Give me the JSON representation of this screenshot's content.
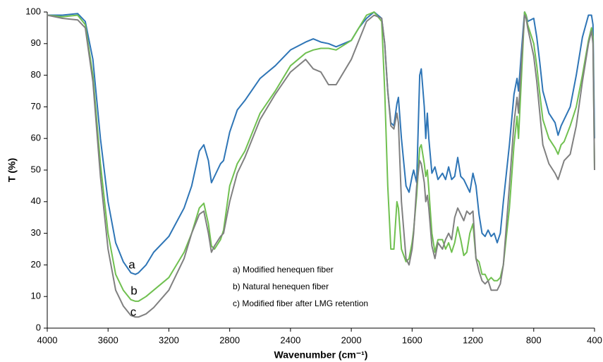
{
  "chart_data": {
    "type": "line",
    "xlabel": "Wavenumber (cm⁻¹)",
    "ylabel": "T (%)",
    "xlim": [
      4000,
      400
    ],
    "xticks": [
      4000,
      3600,
      3200,
      2800,
      2400,
      2000,
      1600,
      1200,
      800,
      400
    ],
    "ylim": [
      0,
      100
    ],
    "yticks": [
      0,
      10,
      20,
      30,
      40,
      50,
      60,
      70,
      80,
      90,
      100
    ],
    "grid": false,
    "x": [
      4000,
      3900,
      3800,
      3750,
      3700,
      3650,
      3600,
      3550,
      3500,
      3450,
      3420,
      3400,
      3350,
      3300,
      3200,
      3100,
      3050,
      3000,
      2970,
      2940,
      2920,
      2900,
      2860,
      2840,
      2800,
      2750,
      2700,
      2600,
      2500,
      2400,
      2300,
      2250,
      2200,
      2150,
      2100,
      2000,
      1950,
      1900,
      1850,
      1800,
      1780,
      1760,
      1740,
      1720,
      1700,
      1690,
      1670,
      1640,
      1620,
      1600,
      1590,
      1570,
      1550,
      1540,
      1520,
      1510,
      1500,
      1490,
      1470,
      1450,
      1430,
      1400,
      1380,
      1360,
      1340,
      1320,
      1300,
      1280,
      1260,
      1240,
      1220,
      1200,
      1180,
      1160,
      1140,
      1120,
      1100,
      1080,
      1060,
      1040,
      1020,
      1000,
      960,
      930,
      910,
      900,
      880,
      860,
      850,
      840,
      800,
      780,
      760,
      740,
      700,
      660,
      640,
      620,
      600,
      560,
      520,
      480,
      440,
      420,
      410,
      400
    ],
    "series": [
      {
        "name": "a) Modified henequen fiber",
        "label": "a",
        "color": "#2e75b6",
        "values": [
          99,
          99,
          99.5,
          97,
          85,
          60,
          40,
          27,
          21,
          17.5,
          17,
          17.5,
          20,
          24,
          29,
          38,
          45,
          56,
          58,
          53,
          46,
          48,
          52,
          53,
          62,
          69,
          72,
          79,
          83,
          88,
          90.5,
          91.5,
          90.5,
          90,
          89,
          91,
          95,
          98,
          100,
          98,
          90,
          75,
          65,
          64,
          71,
          73,
          60,
          45,
          43,
          48,
          50,
          46,
          80,
          82,
          70,
          60,
          68,
          60,
          49,
          51,
          47,
          49,
          47,
          51,
          47,
          48,
          54,
          48,
          47,
          45,
          43,
          49,
          45,
          36,
          30,
          29,
          31,
          29,
          30,
          27,
          30,
          40,
          58,
          74,
          79,
          75,
          88,
          100,
          99,
          97,
          98,
          92,
          84,
          75,
          68,
          65,
          61,
          64,
          66,
          70,
          80,
          92,
          99,
          99,
          96,
          60
        ]
      },
      {
        "name": "b) Natural henequen fiber",
        "label": "b",
        "color": "#70c050",
        "values": [
          99,
          98.5,
          99,
          96,
          80,
          52,
          30,
          17,
          12,
          9,
          8.5,
          8.5,
          10,
          12,
          16,
          24,
          30,
          38,
          39.5,
          33,
          26,
          25,
          28,
          31,
          45,
          52,
          56,
          68,
          75,
          83,
          87,
          88,
          88.5,
          88.5,
          88,
          91,
          95,
          99,
          100,
          97,
          75,
          45,
          25,
          25,
          40,
          38,
          25,
          21,
          22,
          27,
          31,
          42,
          57,
          58,
          52,
          48,
          50,
          44,
          30,
          24,
          28,
          28,
          25,
          27,
          24,
          27,
          32,
          28,
          23,
          24,
          30,
          33,
          22,
          21,
          17,
          17,
          15,
          16,
          15,
          15,
          16,
          20,
          38,
          58,
          67,
          60,
          80,
          100,
          99,
          96,
          90,
          83,
          74,
          66,
          60,
          57,
          55,
          58,
          59,
          64,
          70,
          80,
          91,
          95,
          92,
          50
        ]
      },
      {
        "name": "c) Modified fiber after LMG retention",
        "label": "c",
        "color": "#808080",
        "values": [
          99,
          98,
          97.5,
          95,
          78,
          48,
          25,
          12,
          7,
          4,
          3.5,
          3.5,
          4.5,
          6.5,
          12,
          22,
          30,
          36,
          37,
          30,
          24,
          26,
          29,
          30,
          40,
          49,
          54,
          66,
          74,
          81,
          85,
          82,
          81,
          77,
          77,
          85,
          91,
          97,
          99,
          98,
          90,
          75,
          64,
          63,
          68,
          65,
          40,
          22,
          20,
          25,
          30,
          45,
          53,
          52,
          46,
          40,
          42,
          38,
          26,
          22,
          27,
          25,
          28,
          30,
          28,
          35,
          38,
          36,
          34,
          37,
          36,
          37,
          22,
          18,
          15,
          14,
          15,
          12,
          12,
          12,
          14,
          20,
          45,
          65,
          73,
          68,
          85,
          99,
          98,
          95,
          86,
          78,
          68,
          58,
          52,
          49,
          47,
          50,
          53,
          55,
          64,
          78,
          90,
          94,
          90,
          50
        ]
      }
    ]
  }
}
